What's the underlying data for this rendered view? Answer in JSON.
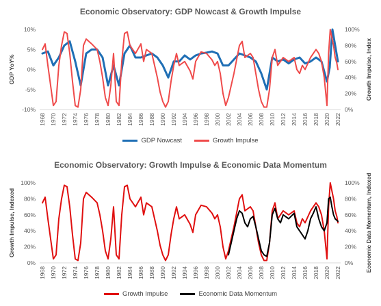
{
  "chart_data": [
    {
      "type": "line",
      "title": "Economic Observatory: GDP Nowcast & Growth Impulse",
      "ylabel": "GDP YoY%",
      "y2label": "Growth Impulse, Index",
      "ylim": [
        -10,
        10
      ],
      "y2lim": [
        0,
        100
      ],
      "yticks": [
        "10%",
        "5%",
        "0%",
        "-5%",
        "-10%"
      ],
      "y2ticks": [
        "100%",
        "80%",
        "60%",
        "40%",
        "20%",
        "0%"
      ],
      "xlim": [
        1967.5,
        2022.5
      ],
      "xticks": [
        "1968",
        "1970",
        "1972",
        "1974",
        "1976",
        "1978",
        "1980",
        "1982",
        "1984",
        "1986",
        "1988",
        "1990",
        "1992",
        "1994",
        "1996",
        "1998",
        "2000",
        "2002",
        "2004",
        "2006",
        "2008",
        "2010",
        "2012",
        "2014",
        "2016",
        "2018",
        "2020",
        "2022"
      ],
      "grid": false,
      "legend_position": "bottom",
      "series": [
        {
          "name": "GDP Nowcast",
          "color": "#1f6fb5",
          "axis": "left",
          "x": [
            1968,
            1969,
            1970,
            1971,
            1972,
            1973,
            1974,
            1975,
            1976,
            1977,
            1978,
            1979,
            1980,
            1981,
            1982,
            1983,
            1984,
            1985,
            1986,
            1987,
            1988,
            1989,
            1990,
            1991,
            1992,
            1993,
            1994,
            1995,
            1996,
            1997,
            1998,
            1999,
            2000,
            2001,
            2002,
            2003,
            2004,
            2005,
            2006,
            2007,
            2008,
            2009,
            2010,
            2011,
            2012,
            2013,
            2014,
            2015,
            2016,
            2017,
            2018,
            2019,
            2020,
            2020.5,
            2021,
            2021.5,
            2022
          ],
          "y": [
            4,
            4.5,
            1,
            3,
            6,
            7,
            2,
            -4,
            4,
            5,
            5,
            3,
            -4,
            1,
            -4,
            4,
            6,
            3,
            3,
            3.5,
            4,
            3,
            1,
            -2,
            2,
            2,
            3.5,
            2.5,
            3.5,
            4,
            4.2,
            4.5,
            4,
            1,
            1,
            2.5,
            4,
            3.5,
            3,
            2,
            -1,
            -5,
            3,
            2,
            2.5,
            1.5,
            2.5,
            3,
            1.5,
            2,
            3,
            2,
            -3,
            0.5,
            10,
            6,
            2
          ]
        },
        {
          "name": "Growth Impulse",
          "color": "#ef4b4b",
          "axis": "right",
          "x": [
            1968,
            1968.5,
            1969,
            1969.5,
            1970,
            1970.5,
            1971,
            1971.5,
            1972,
            1972.5,
            1973,
            1973.5,
            1974,
            1974.5,
            1975,
            1975.5,
            1976,
            1977,
            1978,
            1978.5,
            1979,
            1979.5,
            1980,
            1980.5,
            1981,
            1981.5,
            1982,
            1982.5,
            1983,
            1983.5,
            1984,
            1985,
            1986,
            1986.5,
            1987,
            1988,
            1988.5,
            1989,
            1989.5,
            1990,
            1990.5,
            1991,
            1991.5,
            1992,
            1992.5,
            1993,
            1994,
            1995,
            1995.5,
            1996,
            1997,
            1998,
            1999,
            1999.5,
            2000,
            2000.5,
            2001,
            2001.5,
            2002,
            2003,
            2004,
            2004.5,
            2005,
            2006,
            2006.5,
            2007,
            2007.5,
            2008,
            2008.5,
            2009,
            2009.5,
            2010,
            2010.5,
            2011,
            2012,
            2013,
            2014,
            2014.5,
            2015,
            2015.5,
            2016,
            2017,
            2018,
            2018.5,
            2019,
            2019.5,
            2020,
            2020.3,
            2020.6,
            2020.9,
            2021.2,
            2021.5,
            2021.8,
            2022
          ],
          "y": [
            75,
            82,
            55,
            30,
            5,
            10,
            55,
            80,
            97,
            95,
            70,
            35,
            5,
            3,
            25,
            80,
            88,
            82,
            75,
            60,
            40,
            15,
            5,
            30,
            70,
            10,
            5,
            60,
            95,
            97,
            80,
            70,
            82,
            60,
            75,
            70,
            55,
            40,
            22,
            10,
            3,
            10,
            35,
            55,
            70,
            55,
            60,
            48,
            38,
            60,
            72,
            70,
            62,
            55,
            60,
            45,
            20,
            5,
            15,
            45,
            80,
            85,
            65,
            70,
            65,
            45,
            25,
            10,
            3,
            3,
            25,
            65,
            75,
            55,
            65,
            60,
            65,
            50,
            45,
            55,
            50,
            65,
            75,
            70,
            60,
            40,
            5,
            70,
            100,
            90,
            80,
            65,
            58,
            50
          ]
        }
      ]
    },
    {
      "type": "line",
      "title": "Economic Observatory: Growth Impulse & Economic Data Momentum",
      "ylabel": "Growth Impulse, Indexed",
      "y2label": "Economic Data Momentum, Indexed",
      "ylim": [
        0,
        100
      ],
      "y2lim": [
        0,
        100
      ],
      "yticks": [
        "100%",
        "80%",
        "60%",
        "40%",
        "20%",
        "0%"
      ],
      "y2ticks": [
        "100%",
        "80%",
        "60%",
        "40%",
        "20%",
        "0%"
      ],
      "xlim": [
        1967.5,
        2022.5
      ],
      "xticks": [
        "1968",
        "1970",
        "1972",
        "1974",
        "1976",
        "1978",
        "1980",
        "1982",
        "1984",
        "1986",
        "1988",
        "1990",
        "1992",
        "1994",
        "1996",
        "1998",
        "2000",
        "2002",
        "2004",
        "2006",
        "2008",
        "2010",
        "2012",
        "2014",
        "2016",
        "2018",
        "2020",
        "2022"
      ],
      "grid": false,
      "legend_position": "bottom",
      "series": [
        {
          "name": "Growth Impulse",
          "color": "#e01010",
          "axis": "left",
          "x": [
            1968,
            1968.5,
            1969,
            1969.5,
            1970,
            1970.5,
            1971,
            1971.5,
            1972,
            1972.5,
            1973,
            1973.5,
            1974,
            1974.5,
            1975,
            1975.5,
            1976,
            1977,
            1978,
            1978.5,
            1979,
            1979.5,
            1980,
            1980.5,
            1981,
            1981.5,
            1982,
            1982.5,
            1983,
            1983.5,
            1984,
            1985,
            1986,
            1986.5,
            1987,
            1988,
            1988.5,
            1989,
            1989.5,
            1990,
            1990.5,
            1991,
            1991.5,
            1992,
            1992.5,
            1993,
            1994,
            1995,
            1995.5,
            1996,
            1997,
            1998,
            1999,
            1999.5,
            2000,
            2000.5,
            2001,
            2001.5,
            2002,
            2003,
            2004,
            2004.5,
            2005,
            2006,
            2006.5,
            2007,
            2007.5,
            2008,
            2008.5,
            2009,
            2009.5,
            2010,
            2010.5,
            2011,
            2012,
            2013,
            2014,
            2014.5,
            2015,
            2015.5,
            2016,
            2017,
            2018,
            2018.5,
            2019,
            2019.5,
            2020,
            2020.3,
            2020.6,
            2020.9,
            2021.2,
            2021.5,
            2021.8,
            2022
          ],
          "y": [
            75,
            82,
            55,
            30,
            5,
            10,
            55,
            80,
            97,
            95,
            70,
            35,
            5,
            3,
            25,
            80,
            88,
            82,
            75,
            60,
            40,
            15,
            5,
            30,
            70,
            10,
            5,
            60,
            95,
            97,
            80,
            70,
            82,
            60,
            75,
            70,
            55,
            40,
            22,
            10,
            3,
            10,
            35,
            55,
            70,
            55,
            60,
            48,
            38,
            60,
            72,
            70,
            62,
            55,
            60,
            45,
            20,
            5,
            15,
            45,
            80,
            85,
            65,
            70,
            65,
            45,
            25,
            10,
            3,
            3,
            25,
            65,
            75,
            55,
            65,
            60,
            65,
            50,
            45,
            55,
            50,
            65,
            75,
            70,
            60,
            40,
            5,
            70,
            100,
            90,
            80,
            65,
            58,
            50
          ]
        },
        {
          "name": "Economic Data Momentum",
          "color": "#000000",
          "axis": "right",
          "x": [
            2002,
            2002.5,
            2003,
            2003.5,
            2004,
            2004.5,
            2005,
            2005.5,
            2006,
            2006.5,
            2007,
            2007.5,
            2008,
            2008.5,
            2009,
            2009.5,
            2010,
            2010.5,
            2011,
            2011.5,
            2012,
            2013,
            2014,
            2014.5,
            2015,
            2015.5,
            2016,
            2016.5,
            2017,
            2017.5,
            2018,
            2018.5,
            2019,
            2019.5,
            2020,
            2020.3,
            2020.6,
            2020.9,
            2021.2,
            2021.5,
            2022
          ],
          "y": [
            10,
            25,
            40,
            55,
            65,
            62,
            50,
            45,
            55,
            58,
            45,
            30,
            15,
            10,
            8,
            25,
            60,
            68,
            55,
            50,
            60,
            55,
            62,
            45,
            40,
            35,
            30,
            40,
            55,
            62,
            70,
            55,
            45,
            40,
            50,
            80,
            82,
            70,
            60,
            55,
            52
          ]
        }
      ]
    }
  ]
}
